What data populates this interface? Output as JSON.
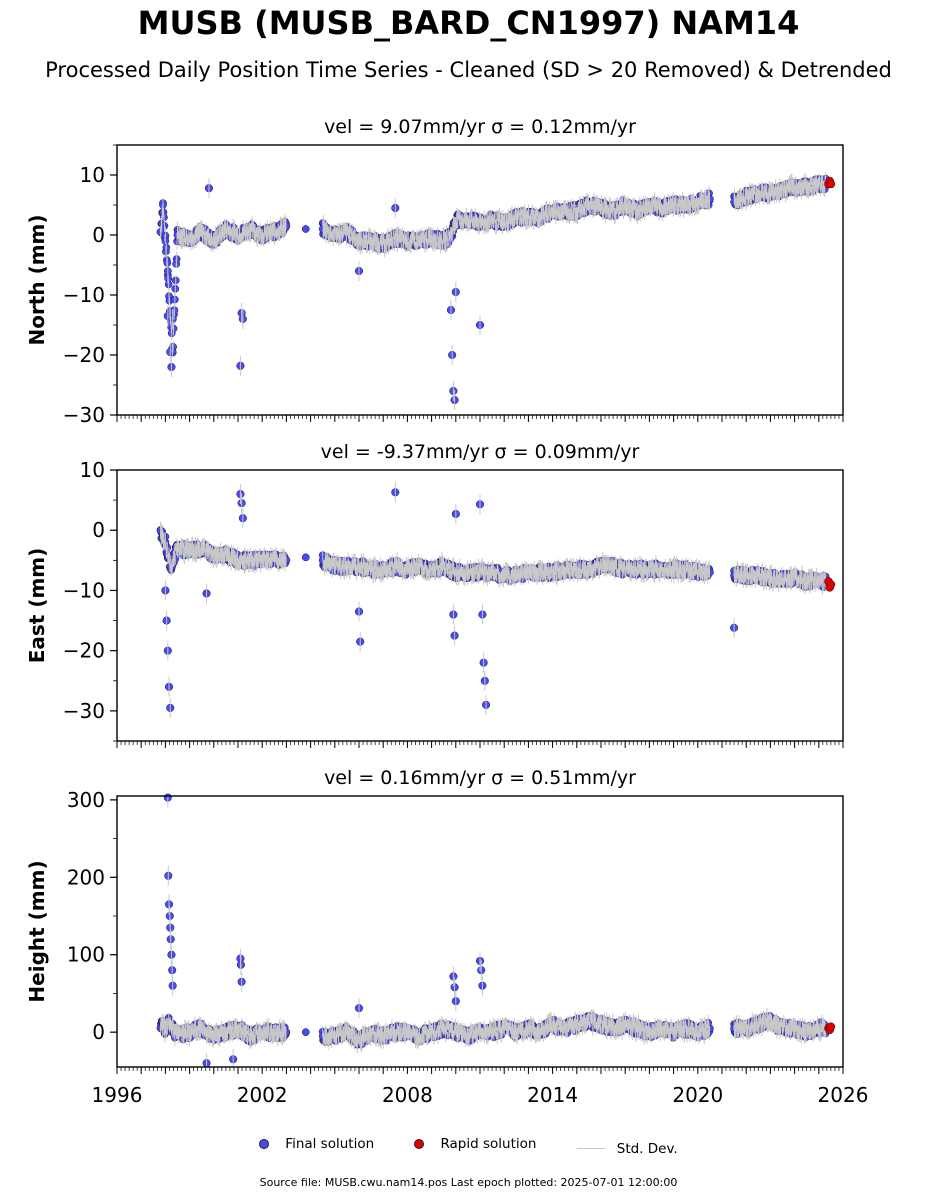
{
  "title": "MUSB (MUSB_BARD_CN1997) NAM14",
  "subtitle": "Processed Daily Position Time Series - Cleaned (SD > 20 Removed) & Detrended",
  "legend": {
    "final": "Final solution",
    "rapid": "Rapid solution",
    "std": "Std. Dev."
  },
  "footer": "Source file: MUSB.cwu.nam14.pos  Last epoch plotted: 2025-07-01 12:00:00",
  "colors": {
    "final": "#4a4af5",
    "rapid": "#e00000",
    "std": "#c8c8c8"
  },
  "chart_data": [
    {
      "type": "scatter",
      "title": "vel = 9.07mm/yr   σ = 0.12mm/yr",
      "ylabel": "North (mm)",
      "xlim": [
        1996,
        2026
      ],
      "ylim": [
        -30,
        15
      ],
      "yticks": [
        10,
        0,
        -10,
        -20,
        -30
      ],
      "xticks": [
        1996,
        2002,
        2008,
        2014,
        2020,
        2026
      ],
      "show_xtick_labels": false,
      "grid": false,
      "series": [
        {
          "role": "final",
          "x": [
            1997.8,
            1997.9,
            1998.0,
            1998.1,
            1998.2,
            1998.3,
            1998.5,
            1999.0,
            1999.5,
            2000.0,
            2000.5,
            2001.0,
            2001.5,
            2002.0,
            2002.5,
            2003.0,
            2003.8,
            2004.5,
            2005.0,
            2005.5,
            2006.0,
            2006.5,
            2007.0,
            2007.5,
            2008.0,
            2008.5,
            2009.0,
            2009.5,
            2009.8,
            2010.0,
            2010.5,
            2011.0,
            2011.5,
            2012.0,
            2012.5,
            2013.0,
            2013.5,
            2014.0,
            2014.5,
            2015.0,
            2015.5,
            2016.0,
            2016.5,
            2017.0,
            2017.5,
            2018.0,
            2018.5,
            2019.0,
            2019.5,
            2020.0,
            2020.5,
            2021.5,
            2022.0,
            2022.5,
            2023.0,
            2023.5,
            2024.0,
            2024.5,
            2025.0,
            2025.3
          ],
          "y": [
            0.5,
            5,
            -1,
            -6,
            -13,
            -19.5,
            0,
            -0.5,
            0.5,
            -1,
            1,
            0,
            1,
            0,
            0.5,
            1.5,
            1,
            1,
            0,
            0.5,
            -1,
            -1,
            -1.5,
            -0.5,
            -1,
            -1,
            -0.5,
            -1,
            0,
            2.5,
            2.5,
            2,
            2.5,
            2,
            3,
            3,
            3,
            4,
            4,
            4,
            5,
            4.5,
            4,
            5,
            4,
            5,
            4.5,
            5,
            5,
            5.5,
            6,
            5.5,
            6.5,
            7,
            7,
            7.5,
            8,
            8,
            8.5,
            8.5
          ]
        },
        {
          "role": "outlier",
          "x": [
            1998.1,
            1998.2,
            1998.25,
            1998.3,
            2001.1,
            2001.15,
            2001.2,
            1999.8,
            2009.8,
            2009.85,
            2009.9,
            2009.95,
            2010.0,
            2011.0,
            2006.0,
            2007.5
          ],
          "y": [
            -13.5,
            -19.5,
            -22,
            -14,
            -21.8,
            -13,
            -14,
            7.8,
            -12.5,
            -20,
            -26,
            -27.5,
            -9.5,
            -15,
            -6,
            4.5
          ]
        },
        {
          "role": "rapid",
          "x": [
            2025.4,
            2025.45,
            2025.5
          ],
          "y": [
            8.5,
            9,
            8.5
          ]
        }
      ]
    },
    {
      "type": "scatter",
      "title": "vel = -9.37mm/yr   σ = 0.09mm/yr",
      "ylabel": "East (mm)",
      "xlim": [
        1996,
        2026
      ],
      "ylim": [
        -35,
        10
      ],
      "yticks": [
        10,
        0,
        -10,
        -20,
        -30
      ],
      "xticks": [
        1996,
        2002,
        2008,
        2014,
        2020,
        2026
      ],
      "show_xtick_labels": false,
      "grid": false,
      "series": [
        {
          "role": "final",
          "x": [
            1997.8,
            1997.9,
            1998.0,
            1998.1,
            1998.2,
            1998.5,
            1999.0,
            1999.5,
            2000.0,
            2000.5,
            2001.0,
            2001.5,
            2002.0,
            2002.5,
            2003.0,
            2003.8,
            2004.5,
            2005.0,
            2005.5,
            2006.0,
            2006.5,
            2007.0,
            2007.5,
            2008.0,
            2008.5,
            2009.0,
            2009.5,
            2010.0,
            2010.5,
            2011.0,
            2011.5,
            2012.0,
            2012.5,
            2013.0,
            2013.5,
            2014.0,
            2014.5,
            2015.0,
            2015.5,
            2016.0,
            2016.5,
            2017.0,
            2017.5,
            2018.0,
            2018.5,
            2019.0,
            2019.5,
            2020.0,
            2020.5,
            2021.5,
            2022.0,
            2022.5,
            2023.0,
            2023.5,
            2024.0,
            2024.5,
            2025.0,
            2025.3
          ],
          "y": [
            0,
            -1,
            -2,
            -4,
            -6,
            -3,
            -3.5,
            -3,
            -4,
            -4,
            -5,
            -5,
            -5,
            -5,
            -5,
            -4.5,
            -5,
            -6,
            -6,
            -6,
            -6.5,
            -6.5,
            -6,
            -6.5,
            -6,
            -6.5,
            -6,
            -7,
            -7,
            -7,
            -7,
            -7.5,
            -7.5,
            -7,
            -7,
            -7,
            -6.5,
            -6.5,
            -6.5,
            -6,
            -6,
            -6.5,
            -6.5,
            -6.5,
            -6.5,
            -6.5,
            -6.5,
            -7,
            -7,
            -7.5,
            -7.5,
            -7.5,
            -8,
            -8,
            -8,
            -8.5,
            -8.5,
            -8.5
          ]
        },
        {
          "role": "outlier",
          "x": [
            1998.0,
            1998.05,
            1998.1,
            1998.15,
            1998.2,
            2001.1,
            2001.15,
            2001.2,
            2007.5,
            2006.0,
            2006.05,
            2009.9,
            2009.95,
            2010.0,
            2011.0,
            2011.1,
            2011.15,
            2011.2,
            2011.25,
            2021.5,
            1999.7
          ],
          "y": [
            -10,
            -15,
            -20,
            -26,
            -29.5,
            6,
            4.5,
            2,
            6.3,
            -13.5,
            -18.5,
            -14,
            -17.5,
            2.7,
            4.3,
            -14,
            -22,
            -25,
            -29,
            -16.2,
            -10.5
          ]
        },
        {
          "role": "rapid",
          "x": [
            2025.4,
            2025.45,
            2025.5
          ],
          "y": [
            -8.5,
            -9.5,
            -9
          ]
        }
      ]
    },
    {
      "type": "scatter",
      "title": "vel = 0.16mm/yr   σ = 0.51mm/yr",
      "ylabel": "Height (mm)",
      "xlim": [
        1996,
        2026
      ],
      "ylim": [
        -45,
        305
      ],
      "yticks": [
        300,
        200,
        100,
        0
      ],
      "xticks": [
        1996,
        2002,
        2008,
        2014,
        2020,
        2026
      ],
      "show_xtick_labels": true,
      "grid": false,
      "series": [
        {
          "role": "final",
          "x": [
            1997.8,
            1997.9,
            1998.0,
            1998.1,
            1998.5,
            1999.0,
            1999.5,
            2000.0,
            2000.5,
            2001.0,
            2001.5,
            2002.0,
            2002.5,
            2003.0,
            2003.8,
            2004.5,
            2005.0,
            2005.5,
            2006.0,
            2006.5,
            2007.0,
            2007.5,
            2008.0,
            2008.5,
            2009.0,
            2009.5,
            2010.0,
            2010.5,
            2011.0,
            2011.5,
            2012.0,
            2012.5,
            2013.0,
            2013.5,
            2014.0,
            2014.5,
            2015.0,
            2015.5,
            2016.0,
            2016.5,
            2017.0,
            2017.5,
            2018.0,
            2018.5,
            2019.0,
            2019.5,
            2020.0,
            2020.5,
            2021.5,
            2022.0,
            2022.5,
            2023.0,
            2023.5,
            2024.0,
            2024.5,
            2025.0,
            2025.3
          ],
          "y": [
            5,
            10,
            0,
            15,
            -5,
            0,
            5,
            -5,
            0,
            5,
            -5,
            0,
            0,
            0,
            0,
            -5,
            -5,
            0,
            -10,
            0,
            -5,
            0,
            0,
            -5,
            0,
            5,
            0,
            -5,
            0,
            0,
            5,
            0,
            5,
            0,
            10,
            5,
            10,
            15,
            10,
            5,
            10,
            5,
            0,
            5,
            0,
            5,
            0,
            5,
            5,
            5,
            10,
            15,
            5,
            5,
            0,
            5,
            5
          ]
        },
        {
          "role": "outlier",
          "x": [
            1998.1,
            1998.12,
            1998.15,
            1998.18,
            1998.2,
            1998.22,
            1998.25,
            1998.28,
            1998.3,
            2001.1,
            2001.12,
            2001.15,
            2009.9,
            2009.95,
            2010.0,
            2011.0,
            2011.05,
            2011.1,
            2006.0,
            1999.7,
            2000.8
          ],
          "y": [
            303,
            202,
            165,
            150,
            135,
            120,
            100,
            80,
            60,
            95,
            87,
            65,
            72,
            58,
            40,
            92,
            80,
            60,
            31,
            -40,
            -35
          ]
        },
        {
          "role": "rapid",
          "x": [
            2025.4,
            2025.45,
            2025.5
          ],
          "y": [
            5,
            3,
            7
          ]
        }
      ]
    }
  ]
}
